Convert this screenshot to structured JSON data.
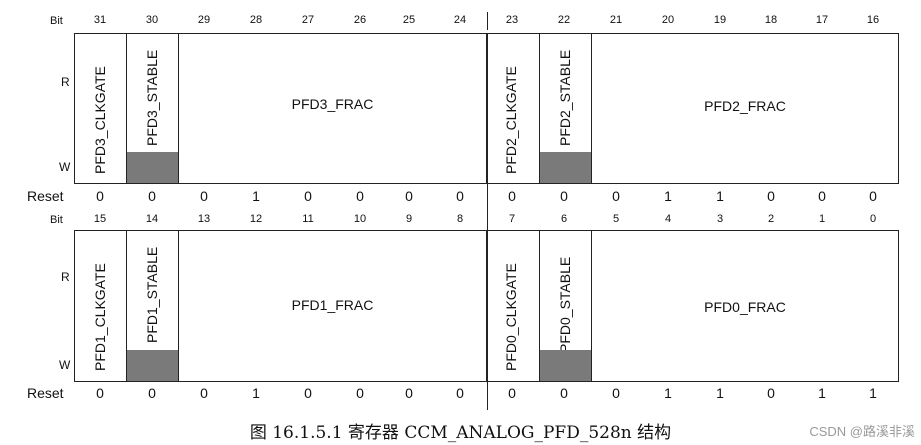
{
  "labels": {
    "bit": "Bit",
    "read": "R",
    "write": "W",
    "reset": "Reset"
  },
  "top": {
    "bits": [
      "31",
      "30",
      "29",
      "28",
      "27",
      "26",
      "25",
      "24",
      "23",
      "22",
      "21",
      "20",
      "19",
      "18",
      "17",
      "16"
    ],
    "fields": {
      "left_clkgate": "PFD3_CLKGATE",
      "left_stable": "PFD3_STABLE",
      "left_frac": "PFD3_FRAC",
      "right_clkgate": "PFD2_CLKGATE",
      "right_stable": "PFD2_STABLE",
      "right_frac": "PFD2_FRAC"
    },
    "reset": [
      "0",
      "0",
      "0",
      "1",
      "0",
      "0",
      "0",
      "0",
      "0",
      "0",
      "0",
      "1",
      "1",
      "0",
      "0",
      "0"
    ]
  },
  "bottom": {
    "bits": [
      "15",
      "14",
      "13",
      "12",
      "11",
      "10",
      "9",
      "8",
      "7",
      "6",
      "5",
      "4",
      "3",
      "2",
      "1",
      "0"
    ],
    "fields": {
      "left_clkgate": "PFD1_CLKGATE",
      "left_stable": "PFD1_STABLE",
      "left_frac": "PFD1_FRAC",
      "right_clkgate": "PFD0_CLKGATE",
      "right_stable": "PFD0_STABLE",
      "right_frac": "PFD0_FRAC"
    },
    "reset": [
      "0",
      "0",
      "0",
      "1",
      "0",
      "0",
      "0",
      "0",
      "0",
      "0",
      "0",
      "1",
      "1",
      "0",
      "1",
      "1"
    ]
  },
  "caption": "图 16.1.5.1 寄存器 CCM_ANALOG_PFD_528n 结构",
  "watermark": "CSDN @路溪非溪",
  "colors": {
    "shade": "#7a7a7a",
    "line": "#222222"
  }
}
